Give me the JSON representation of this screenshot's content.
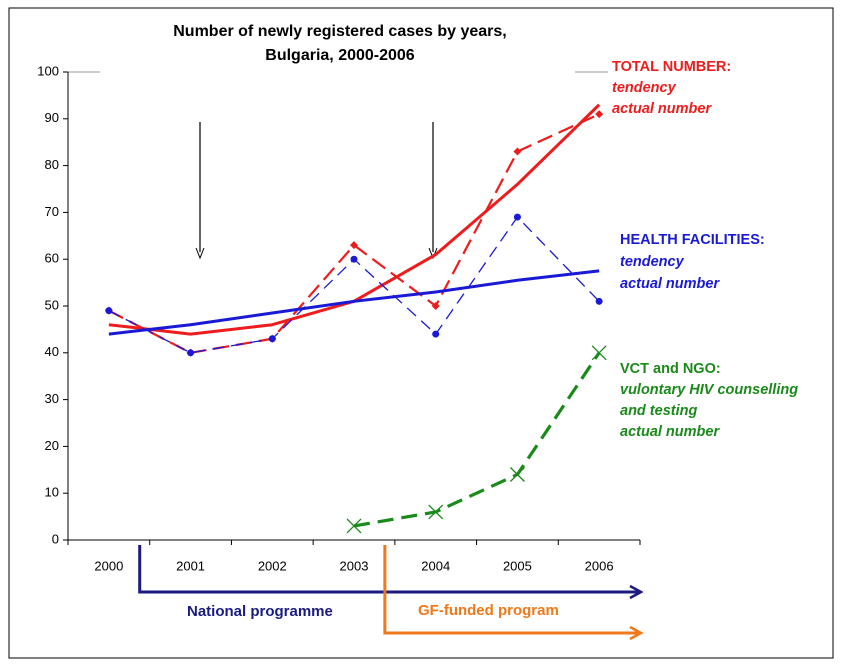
{
  "chart_data": {
    "type": "line",
    "title": [
      "Number of newly registered cases by years,",
      "Bulgaria, 2000-2006"
    ],
    "categories": [
      "2000",
      "2001",
      "2002",
      "2003",
      "2004",
      "2005",
      "2006"
    ],
    "ylim": [
      0,
      100
    ],
    "yticks": [
      0,
      10,
      20,
      30,
      40,
      50,
      60,
      70,
      80,
      90,
      100
    ],
    "groups": [
      {
        "title": "TOTAL NUMBER:",
        "color": "#ee1c1c",
        "series": [
          {
            "name": "tendency",
            "style": "solid",
            "marker": "none",
            "values": [
              46,
              44,
              46,
              51,
              61,
              76,
              93
            ]
          },
          {
            "name": "actual number",
            "style": "dashed",
            "marker": "diamond",
            "values": [
              49,
              40,
              43,
              63,
              50,
              83,
              91
            ]
          }
        ]
      },
      {
        "title": "HEALTH FACILITIES:",
        "color": "#1a1ad6",
        "series": [
          {
            "name": "tendency",
            "style": "solid",
            "marker": "none",
            "values": [
              44,
              46,
              48.5,
              51,
              53,
              55.5,
              57.5
            ]
          },
          {
            "name": "actual number",
            "style": "thin-dashed",
            "marker": "circle",
            "values": [
              49,
              40,
              43,
              60,
              44,
              69,
              51
            ]
          }
        ]
      },
      {
        "title": "VCT and NGO:",
        "color": "#1a8a1a",
        "description": [
          "vulontary HIV counselling",
          "and testing"
        ],
        "series": [
          {
            "name": "actual number",
            "style": "thick-dashed",
            "marker": "x",
            "values": [
              null,
              null,
              null,
              3,
              6,
              14,
              40
            ]
          }
        ]
      }
    ],
    "programmes": [
      {
        "label": "National programme",
        "color": "#1a1a80",
        "start": "2001"
      },
      {
        "label": "GF-funded program",
        "color": "#f07818",
        "start": "2004"
      }
    ]
  }
}
